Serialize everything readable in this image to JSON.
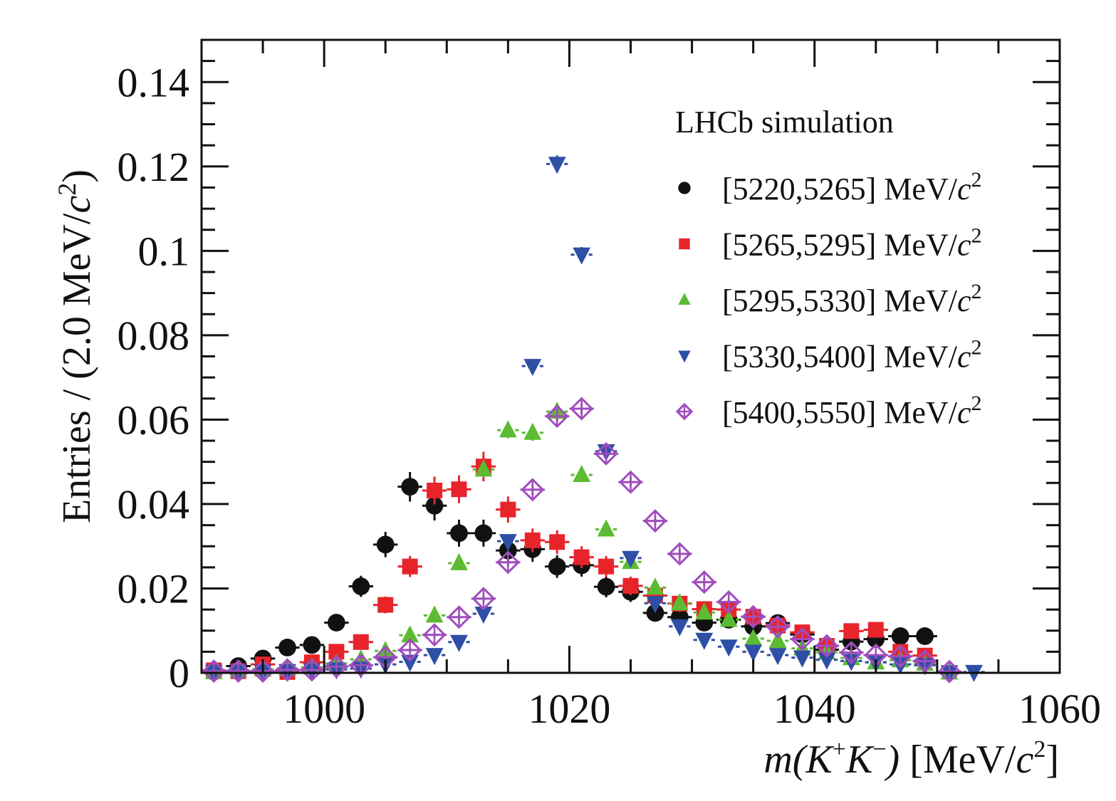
{
  "chart_data": {
    "type": "scatter",
    "title": "",
    "annotation": "LHCb simulation",
    "xlabel": "m(K⁺K⁻) [MeV/c²]",
    "xlabel_parts": {
      "m": "m",
      "open": "(",
      "k1": "K",
      "sup1": "+",
      "k2": "K",
      "sup2": "−",
      "close": ")",
      "unit_pre": " [MeV/",
      "c": "c",
      "sup_c": "2",
      "unit_post": "]"
    },
    "ylabel": "Entries / (2.0 MeV/c²)",
    "ylabel_parts": {
      "pre": "Entries / (2.0 MeV/",
      "c": "c",
      "sup": "2",
      "post": ")"
    },
    "xlim": [
      990,
      1060
    ],
    "ylim": [
      0,
      0.15
    ],
    "x_ticks": [
      1000,
      1020,
      1040,
      1060
    ],
    "x_tick_labels": [
      "1000",
      "1020",
      "1040",
      "1060"
    ],
    "y_ticks": [
      0,
      0.02,
      0.04,
      0.06,
      0.08,
      0.1,
      0.12,
      0.14
    ],
    "y_tick_labels": [
      "0",
      "0.02",
      "0.04",
      "0.06",
      "0.08",
      "0.1",
      "0.12",
      "0.14"
    ],
    "bin_width": 2,
    "grid": false,
    "legend_position": "top-right",
    "series": [
      {
        "name": "[5220,5265] MeV/c²",
        "label_range": "[5220,5265]",
        "marker": "circle",
        "color": "#111111",
        "x": [
          991,
          993,
          995,
          997,
          999,
          1001,
          1003,
          1005,
          1007,
          1009,
          1011,
          1013,
          1015,
          1017,
          1019,
          1021,
          1023,
          1025,
          1027,
          1029,
          1031,
          1033,
          1035,
          1037,
          1039,
          1041,
          1043,
          1045,
          1047,
          1049
        ],
        "y": [
          0.0003,
          0.0016,
          0.0034,
          0.006,
          0.0066,
          0.0119,
          0.0205,
          0.0304,
          0.0441,
          0.0396,
          0.0331,
          0.0331,
          0.029,
          0.0293,
          0.0252,
          0.0255,
          0.0204,
          0.0192,
          0.0142,
          0.0132,
          0.0119,
          0.0126,
          0.011,
          0.0118,
          0.0091,
          0.0055,
          0.0074,
          0.008,
          0.0087,
          0.0087
        ],
        "yerr": [
          0.0003,
          0.0008,
          0.0012,
          0.0014,
          0.0014,
          0.0019,
          0.0025,
          0.003,
          0.0035,
          0.0035,
          0.0032,
          0.0032,
          0.003,
          0.003,
          0.0027,
          0.0027,
          0.0025,
          0.0024,
          0.002,
          0.002,
          0.0019,
          0.0019,
          0.0018,
          0.0019,
          0.0016,
          0.0013,
          0.0014,
          0.0015,
          0.0015,
          0.0015
        ]
      },
      {
        "name": "[5265,5295] MeV/c²",
        "label_range": "[5265,5295]",
        "marker": "square",
        "color": "#e8242b",
        "x": [
          991,
          993,
          995,
          997,
          999,
          1001,
          1003,
          1005,
          1007,
          1009,
          1011,
          1013,
          1015,
          1017,
          1019,
          1021,
          1023,
          1025,
          1027,
          1029,
          1031,
          1033,
          1035,
          1037,
          1039,
          1041,
          1043,
          1045,
          1047,
          1049
        ],
        "y": [
          0.0006,
          0.0004,
          0.002,
          0.0002,
          0.0025,
          0.005,
          0.0073,
          0.0161,
          0.0252,
          0.0432,
          0.0435,
          0.0489,
          0.0387,
          0.0314,
          0.031,
          0.0274,
          0.0252,
          0.0206,
          0.0183,
          0.0164,
          0.0151,
          0.015,
          0.0133,
          0.0112,
          0.0096,
          0.0064,
          0.0099,
          0.0102,
          0.005,
          0.0041
        ],
        "yerr": [
          0.0004,
          0.0003,
          0.0008,
          0.0002,
          0.0009,
          0.0012,
          0.0014,
          0.002,
          0.0025,
          0.0033,
          0.0033,
          0.0035,
          0.0031,
          0.0028,
          0.0028,
          0.0026,
          0.0025,
          0.0022,
          0.0021,
          0.002,
          0.0019,
          0.0019,
          0.0018,
          0.0016,
          0.0015,
          0.0012,
          0.0015,
          0.0015,
          0.0011,
          0.001
        ]
      },
      {
        "name": "[5295,5330] MeV/c²",
        "label_range": "[5295,5330]",
        "marker": "triangle-up",
        "color": "#5dbb33",
        "x": [
          991,
          993,
          995,
          997,
          999,
          1001,
          1003,
          1005,
          1007,
          1009,
          1011,
          1013,
          1015,
          1017,
          1019,
          1021,
          1023,
          1025,
          1027,
          1029,
          1031,
          1033,
          1035,
          1037,
          1039,
          1041,
          1043,
          1045,
          1047,
          1049,
          1051
        ],
        "y": [
          0.0002,
          0.0006,
          0.0008,
          0.001,
          0.0013,
          0.0022,
          0.0032,
          0.0052,
          0.0089,
          0.0136,
          0.026,
          0.0482,
          0.0575,
          0.0569,
          0.0619,
          0.0469,
          0.034,
          0.0263,
          0.0202,
          0.0165,
          0.0143,
          0.0126,
          0.0081,
          0.0076,
          0.0058,
          0.0049,
          0.0035,
          0.0025,
          0.003,
          0.0022,
          0.0001
        ],
        "yerr": [
          0.0001,
          0.0002,
          0.0002,
          0.0003,
          0.0003,
          0.0004,
          0.0005,
          0.0006,
          0.0008,
          0.001,
          0.0013,
          0.0018,
          0.0019,
          0.0019,
          0.002,
          0.0017,
          0.0015,
          0.0013,
          0.0011,
          0.001,
          0.001,
          0.0009,
          0.0007,
          0.0007,
          0.0006,
          0.0006,
          0.0005,
          0.0004,
          0.0005,
          0.0004,
          0.0001
        ]
      },
      {
        "name": "[5330,5400] MeV/c²",
        "label_range": "[5330,5400]",
        "marker": "triangle-down",
        "color": "#2e4fa6",
        "x": [
          991,
          993,
          995,
          997,
          999,
          1001,
          1003,
          1005,
          1007,
          1009,
          1011,
          1013,
          1015,
          1017,
          1019,
          1021,
          1023,
          1025,
          1027,
          1029,
          1031,
          1033,
          1035,
          1037,
          1039,
          1041,
          1043,
          1045,
          1047,
          1049,
          1051,
          1053
        ],
        "y": [
          0.0002,
          0.0003,
          0.0003,
          0.0004,
          0.0006,
          0.0008,
          0.001,
          0.002,
          0.0026,
          0.0042,
          0.0073,
          0.014,
          0.0312,
          0.0727,
          0.1206,
          0.0991,
          0.0525,
          0.0272,
          0.0165,
          0.011,
          0.0078,
          0.0062,
          0.005,
          0.0042,
          0.0036,
          0.0031,
          0.0028,
          0.0025,
          0.002,
          0.0018,
          0.0001,
          0.0002
        ],
        "yerr": [
          0.0001,
          0.0001,
          0.0001,
          0.0001,
          0.0002,
          0.0002,
          0.0002,
          0.0003,
          0.0003,
          0.0004,
          0.0005,
          0.0007,
          0.001,
          0.0015,
          0.002,
          0.0018,
          0.0013,
          0.0009,
          0.0007,
          0.0006,
          0.0005,
          0.0004,
          0.0004,
          0.0003,
          0.0003,
          0.0003,
          0.0003,
          0.0003,
          0.0002,
          0.0002,
          0.0001,
          0.0001
        ]
      },
      {
        "name": "[5400,5550] MeV/c²",
        "label_range": "[5400,5550]",
        "marker": "open-diamond-cross",
        "color": "#a04dbd",
        "x": [
          991,
          993,
          995,
          997,
          999,
          1001,
          1003,
          1005,
          1007,
          1009,
          1011,
          1013,
          1015,
          1017,
          1019,
          1021,
          1023,
          1025,
          1027,
          1029,
          1031,
          1033,
          1035,
          1037,
          1039,
          1041,
          1043,
          1045,
          1047,
          1049,
          1051
        ],
        "y": [
          0.0004,
          0.0004,
          0.0004,
          0.0007,
          0.0007,
          0.0015,
          0.0018,
          0.0037,
          0.0054,
          0.009,
          0.0132,
          0.0176,
          0.0262,
          0.0434,
          0.0608,
          0.0626,
          0.0519,
          0.0452,
          0.036,
          0.0282,
          0.0215,
          0.0168,
          0.0133,
          0.0109,
          0.008,
          0.0064,
          0.0048,
          0.0042,
          0.0039,
          0.0028,
          0.0003
        ],
        "yerr": [
          0.0001,
          0.0001,
          0.0001,
          0.0002,
          0.0002,
          0.0003,
          0.0003,
          0.0004,
          0.0005,
          0.0006,
          0.0007,
          0.0008,
          0.001,
          0.0012,
          0.0014,
          0.0014,
          0.0013,
          0.0012,
          0.0011,
          0.001,
          0.0009,
          0.0008,
          0.0007,
          0.0006,
          0.0005,
          0.0005,
          0.0004,
          0.0004,
          0.0004,
          0.0003,
          0.0001
        ]
      }
    ]
  }
}
